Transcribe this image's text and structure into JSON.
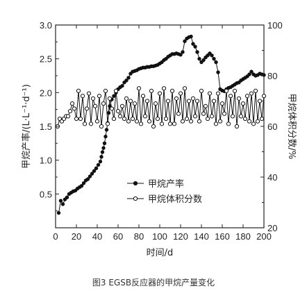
{
  "chart_data": {
    "type": "line",
    "caption": "图3 EGSB反应器的甲烷产量变化",
    "xlabel": "时间/d",
    "ylabel_left": "甲烷产率/(L·L⁻¹·d⁻¹)",
    "ylabel_right": "甲烷体积分数/%",
    "xlim": [
      0,
      200
    ],
    "ylim_left": [
      0,
      3.0
    ],
    "ylim_right": [
      20,
      100
    ],
    "x_ticks": [
      0,
      20,
      40,
      60,
      80,
      100,
      120,
      140,
      160,
      180,
      200
    ],
    "y_left_ticks": [
      "0.5",
      "1.0",
      "1.5",
      "2.0",
      "2.5",
      "3.0"
    ],
    "y_right_ticks": [
      "20",
      "40",
      "60",
      "80",
      "100"
    ],
    "legend_position": "center",
    "series": [
      {
        "name": "甲烷产率",
        "axis": "left",
        "marker": "filled-circle",
        "points": [
          [
            3,
            0.22
          ],
          [
            5,
            0.4
          ],
          [
            7,
            0.35
          ],
          [
            9,
            0.42
          ],
          [
            11,
            0.45
          ],
          [
            13,
            0.5
          ],
          [
            15,
            0.52
          ],
          [
            17,
            0.54
          ],
          [
            19,
            0.55
          ],
          [
            21,
            0.58
          ],
          [
            23,
            0.6
          ],
          [
            25,
            0.62
          ],
          [
            27,
            0.66
          ],
          [
            29,
            0.7
          ],
          [
            31,
            0.72
          ],
          [
            33,
            0.76
          ],
          [
            35,
            0.8
          ],
          [
            37,
            0.84
          ],
          [
            39,
            0.88
          ],
          [
            41,
            0.93
          ],
          [
            43,
            0.98
          ],
          [
            44,
            1.05
          ],
          [
            45,
            1.12
          ],
          [
            46,
            1.18
          ],
          [
            47,
            1.25
          ],
          [
            48,
            1.35
          ],
          [
            49,
            1.45
          ],
          [
            50,
            1.55
          ],
          [
            51,
            1.7
          ],
          [
            52,
            1.8
          ],
          [
            54,
            1.9
          ],
          [
            56,
            1.95
          ],
          [
            58,
            2.0
          ],
          [
            60,
            2.05
          ],
          [
            62,
            2.08
          ],
          [
            64,
            2.1
          ],
          [
            66,
            2.15
          ],
          [
            68,
            2.18
          ],
          [
            70,
            2.22
          ],
          [
            72,
            2.28
          ],
          [
            74,
            2.31
          ],
          [
            76,
            2.32
          ],
          [
            78,
            2.33
          ],
          [
            80,
            2.35
          ],
          [
            82,
            2.36
          ],
          [
            84,
            2.37
          ],
          [
            86,
            2.37
          ],
          [
            88,
            2.38
          ],
          [
            90,
            2.38
          ],
          [
            92,
            2.39
          ],
          [
            94,
            2.39
          ],
          [
            96,
            2.4
          ],
          [
            98,
            2.41
          ],
          [
            100,
            2.43
          ],
          [
            102,
            2.45
          ],
          [
            104,
            2.48
          ],
          [
            106,
            2.5
          ],
          [
            108,
            2.53
          ],
          [
            110,
            2.55
          ],
          [
            112,
            2.57
          ],
          [
            114,
            2.57
          ],
          [
            116,
            2.58
          ],
          [
            118,
            2.57
          ],
          [
            120,
            2.56
          ],
          [
            122,
            2.6
          ],
          [
            124,
            2.76
          ],
          [
            126,
            2.8
          ],
          [
            128,
            2.82
          ],
          [
            130,
            2.83
          ],
          [
            132,
            2.72
          ],
          [
            134,
            2.68
          ],
          [
            136,
            2.6
          ],
          [
            138,
            2.5
          ],
          [
            140,
            2.45
          ],
          [
            142,
            2.48
          ],
          [
            144,
            2.52
          ],
          [
            146,
            2.55
          ],
          [
            148,
            2.58
          ],
          [
            150,
            2.55
          ],
          [
            152,
            2.5
          ],
          [
            154,
            2.45
          ],
          [
            156,
            2.3
          ],
          [
            158,
            2.05
          ],
          [
            160,
            2.03
          ],
          [
            162,
            2.02
          ],
          [
            164,
            2.05
          ],
          [
            166,
            2.07
          ],
          [
            168,
            2.08
          ],
          [
            170,
            2.1
          ],
          [
            172,
            2.12
          ],
          [
            174,
            2.14
          ],
          [
            176,
            2.15
          ],
          [
            178,
            2.18
          ],
          [
            180,
            2.2
          ],
          [
            182,
            2.22
          ],
          [
            184,
            2.24
          ],
          [
            186,
            2.27
          ],
          [
            188,
            2.31
          ],
          [
            190,
            2.27
          ],
          [
            192,
            2.25
          ],
          [
            194,
            2.26
          ],
          [
            196,
            2.28
          ],
          [
            198,
            2.27
          ],
          [
            200,
            2.26
          ]
        ]
      },
      {
        "name": "甲烷体积分数",
        "axis": "right",
        "marker": "open-circle",
        "points": [
          [
            2,
            60
          ],
          [
            4,
            63
          ],
          [
            6,
            62
          ],
          [
            8,
            63
          ],
          [
            10,
            64
          ],
          [
            12,
            64
          ],
          [
            14,
            66
          ],
          [
            16,
            69
          ],
          [
            18,
            67
          ],
          [
            20,
            63
          ],
          [
            22,
            74
          ],
          [
            24,
            63
          ],
          [
            26,
            72
          ],
          [
            28,
            61
          ],
          [
            30,
            67
          ],
          [
            32,
            73
          ],
          [
            34,
            61
          ],
          [
            36,
            71
          ],
          [
            38,
            68
          ],
          [
            40,
            62
          ],
          [
            42,
            72
          ],
          [
            44,
            60
          ],
          [
            46,
            69
          ],
          [
            48,
            74
          ],
          [
            50,
            61
          ],
          [
            52,
            71
          ],
          [
            54,
            67
          ],
          [
            56,
            63
          ],
          [
            58,
            74
          ],
          [
            60,
            66
          ],
          [
            62,
            64
          ],
          [
            64,
            68
          ],
          [
            66,
            63
          ],
          [
            68,
            71
          ],
          [
            70,
            62
          ],
          [
            72,
            70
          ],
          [
            74,
            63
          ],
          [
            76,
            69
          ],
          [
            78,
            62
          ],
          [
            80,
            75
          ],
          [
            82,
            61
          ],
          [
            84,
            72
          ],
          [
            86,
            64
          ],
          [
            88,
            70
          ],
          [
            90,
            62
          ],
          [
            92,
            74
          ],
          [
            94,
            60
          ],
          [
            96,
            69
          ],
          [
            98,
            63
          ],
          [
            100,
            73
          ],
          [
            102,
            61
          ],
          [
            104,
            75
          ],
          [
            106,
            63
          ],
          [
            108,
            70
          ],
          [
            110,
            61
          ],
          [
            112,
            74
          ],
          [
            114,
            61
          ],
          [
            116,
            71
          ],
          [
            118,
            65
          ],
          [
            120,
            73
          ],
          [
            122,
            62
          ],
          [
            124,
            75
          ],
          [
            126,
            63
          ],
          [
            128,
            70
          ],
          [
            130,
            62
          ],
          [
            132,
            71
          ],
          [
            134,
            64
          ],
          [
            136,
            70
          ],
          [
            138,
            62
          ],
          [
            140,
            74
          ],
          [
            142,
            65
          ],
          [
            144,
            68
          ],
          [
            146,
            63
          ],
          [
            148,
            73
          ],
          [
            150,
            64
          ],
          [
            152,
            70
          ],
          [
            154,
            61
          ],
          [
            156,
            73
          ],
          [
            158,
            62
          ],
          [
            160,
            69
          ],
          [
            162,
            65
          ],
          [
            164,
            74
          ],
          [
            166,
            61
          ],
          [
            168,
            72
          ],
          [
            170,
            64
          ],
          [
            172,
            74
          ],
          [
            174,
            60
          ],
          [
            176,
            71
          ],
          [
            178,
            64
          ],
          [
            180,
            69
          ],
          [
            182,
            63
          ],
          [
            184,
            72
          ],
          [
            186,
            62
          ],
          [
            188,
            73
          ],
          [
            190,
            61
          ],
          [
            192,
            74
          ],
          [
            194,
            62
          ],
          [
            196,
            70
          ],
          [
            198,
            63
          ],
          [
            200,
            72
          ]
        ]
      }
    ]
  }
}
